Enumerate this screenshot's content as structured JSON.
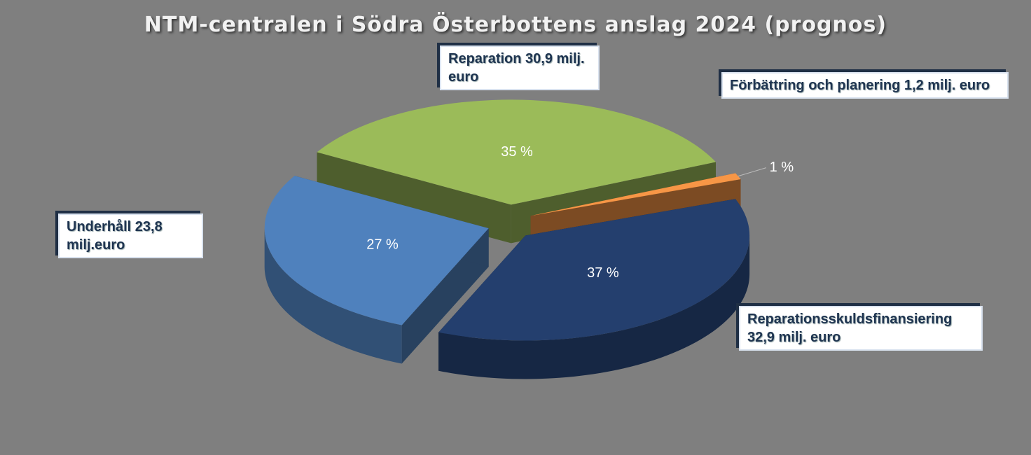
{
  "chart_data": {
    "type": "pie",
    "title": "NTM-centralen i Södra Österbottens anslag 2024 (prognos)",
    "categories": [
      "Reparation 30,9 milj. euro",
      "Förbättring och planering 1,2 milj. euro",
      "Reparationsskuldsfinansiering 32,9 milj. euro",
      "Underhåll 23,8 milj.euro"
    ],
    "values": [
      35,
      1,
      37,
      27
    ],
    "value_labels": [
      "35 %",
      "1 %",
      "37 %",
      "27 %"
    ],
    "colors": [
      "#9bbb59",
      "#f79646",
      "#243f6e",
      "#4f81bd"
    ]
  }
}
